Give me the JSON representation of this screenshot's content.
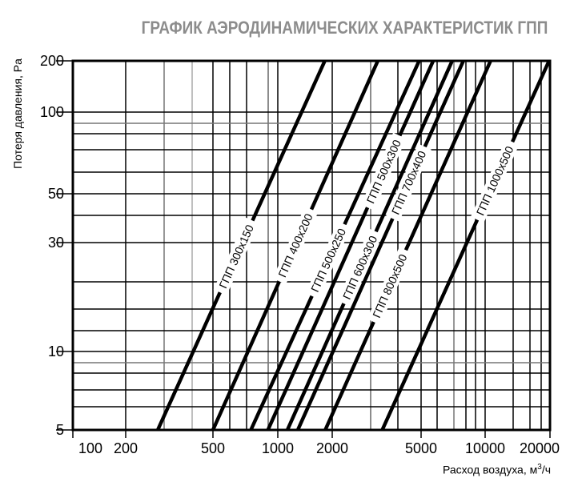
{
  "chart_data": {
    "type": "line",
    "title": "ГРАФИК АЭРОДИНАМИЧЕСКИХ ХАРАКТЕРИСТИК ГПП",
    "xlabel": "Расход воздуха, м",
    "xlabel_sup": "3",
    "xlabel_suffix": "/ч",
    "ylabel": "Потеря давления, Pa",
    "x_scale": "log",
    "y_scale": "log",
    "xlim": [
      100,
      20000
    ],
    "ylim": [
      5,
      200
    ],
    "x_ticks": [
      100,
      200,
      500,
      1000,
      2000,
      5000,
      10000,
      20000
    ],
    "y_ticks": [
      5,
      10,
      30,
      50,
      100,
      200
    ],
    "grid": true,
    "line_color": "#000000",
    "title_color": "#8c8c8c",
    "series": [
      {
        "name": "ГПП 300x150",
        "x": [
          280,
          1820
        ],
        "y": [
          5,
          200
        ]
      },
      {
        "name": "ГПП 400x200",
        "x": [
          500,
          3200
        ],
        "y": [
          5,
          200
        ]
      },
      {
        "name": "ГПП 500x250",
        "x": [
          750,
          4900
        ],
        "y": [
          5,
          200
        ]
      },
      {
        "name": "ГПП 500x300",
        "x": [
          900,
          5700
        ],
        "y": [
          5,
          200
        ]
      },
      {
        "name": "ГПП 600x300",
        "x": [
          1130,
          7000
        ],
        "y": [
          5,
          200
        ]
      },
      {
        "name": "ГПП 700x400",
        "x": [
          1290,
          7900
        ],
        "y": [
          5,
          200
        ]
      },
      {
        "name": "ГПП 800x500",
        "x": [
          1830,
          10600
        ],
        "y": [
          5,
          200
        ]
      },
      {
        "name": "ГПП 1000x500",
        "x": [
          3350,
          19800
        ],
        "y": [
          5,
          200
        ]
      }
    ]
  }
}
